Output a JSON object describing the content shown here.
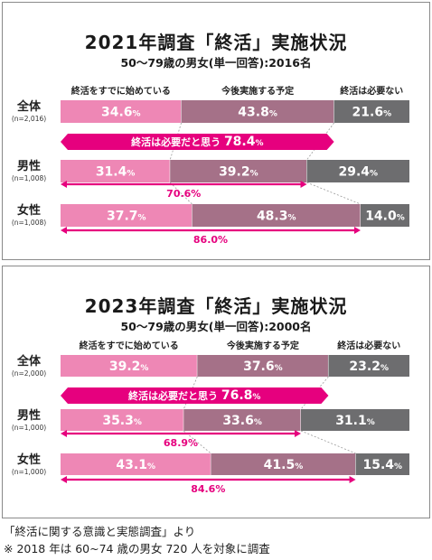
{
  "chart_data": [
    {
      "type": "bar",
      "title": "2021年調査「終活」実施状況",
      "subtitle": "50〜79歳の男女(単一回答):2016名",
      "legend": [
        "終活をすでに始めている",
        "今後実施する予定",
        "終活は必要ない"
      ],
      "categories": [
        "全体",
        "男性",
        "女性"
      ],
      "sample_sizes": [
        "(n=2,016)",
        "(n=1,008)",
        "(n=1,008)"
      ],
      "series": [
        {
          "name": "終活をすでに始めている",
          "values": [
            34.6,
            31.4,
            37.7
          ]
        },
        {
          "name": "今後実施する予定",
          "values": [
            43.8,
            39.2,
            48.3
          ]
        },
        {
          "name": "終活は必要ない",
          "values": [
            21.6,
            29.4,
            14.0
          ]
        }
      ],
      "need_label": "終活は必要だと思う",
      "need_values": [
        78.4,
        70.6,
        86.0
      ],
      "colors": [
        "#ee87b5",
        "#a57188",
        "#6d6d6f",
        "#e6007e"
      ]
    },
    {
      "type": "bar",
      "title": "2023年調査「終活」実施状況",
      "subtitle": "50〜79歳の男女(単一回答):2000名",
      "legend": [
        "終活をすでに始めている",
        "今後実施する予定",
        "終活は必要ない"
      ],
      "categories": [
        "全体",
        "男性",
        "女性"
      ],
      "sample_sizes": [
        "(n=2,000)",
        "(n=1,000)",
        "(n=1,000)"
      ],
      "series": [
        {
          "name": "終活をすでに始めている",
          "values": [
            39.2,
            35.3,
            43.1
          ]
        },
        {
          "name": "今後実施する予定",
          "values": [
            37.6,
            33.6,
            41.5
          ]
        },
        {
          "name": "終活は必要ない",
          "values": [
            23.2,
            31.1,
            15.4
          ]
        }
      ],
      "need_label": "終活は必要だと思う",
      "need_values": [
        76.8,
        68.9,
        84.6
      ],
      "colors": [
        "#ee87b5",
        "#a57188",
        "#6d6d6f",
        "#e6007e"
      ]
    }
  ],
  "footnotes": {
    "source": "「終活に関する意識と実態調査」より",
    "note": "※ 2018 年は 60~74 歳の男女 720 人を対象に調査"
  }
}
